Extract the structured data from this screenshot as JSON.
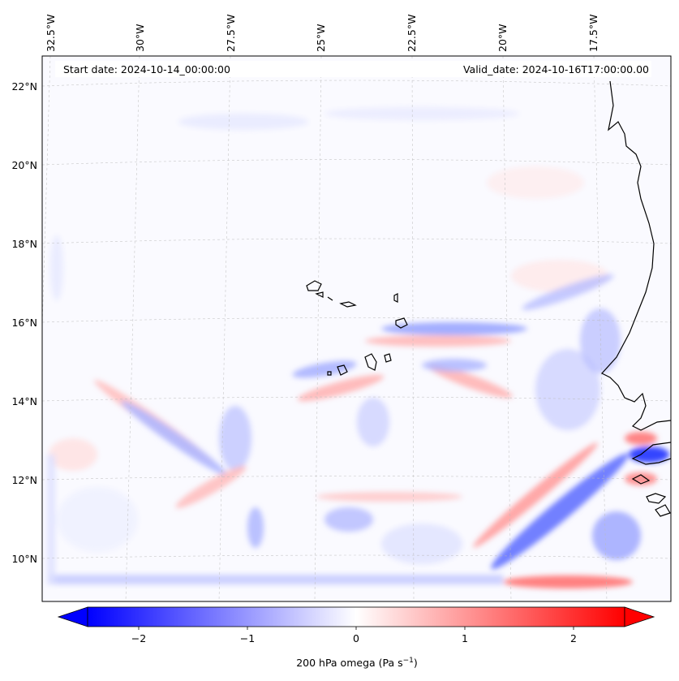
{
  "header": {
    "start_date": "Start date: 2024-10-14_00:00:00",
    "valid_date": "Valid_date: 2024-10-16T17:00:00.00"
  },
  "longitude_labels": [
    "32.5°W",
    "30°W",
    "27.5°W",
    "25°W",
    "22.5°W",
    "20°W",
    "17.5°W"
  ],
  "latitude_labels": [
    "22°N",
    "20°N",
    "18°N",
    "16°N",
    "14°N",
    "12°N",
    "10°N"
  ],
  "colorbar": {
    "tick_labels": [
      "−2",
      "−1",
      "0",
      "1",
      "2"
    ],
    "title": "200 hPa omega (Pa s",
    "title_exp": "−1",
    "title_close": ")",
    "colors": {
      "negative": "#0000ff",
      "zero": "#ffffff",
      "positive": "#ff0000"
    }
  },
  "chart_data": {
    "type": "heatmap",
    "variable": "200 hPa omega",
    "units": "Pa s^-1",
    "color_range": [
      -2.6,
      2.6
    ],
    "colorbar_ticks": [
      -2,
      -1,
      0,
      1,
      2
    ],
    "colormap": "bwr",
    "extend": "both",
    "lon_range": [
      -33.0,
      -15.5
    ],
    "lat_range": [
      9,
      22.5
    ],
    "gridlines": true
  }
}
